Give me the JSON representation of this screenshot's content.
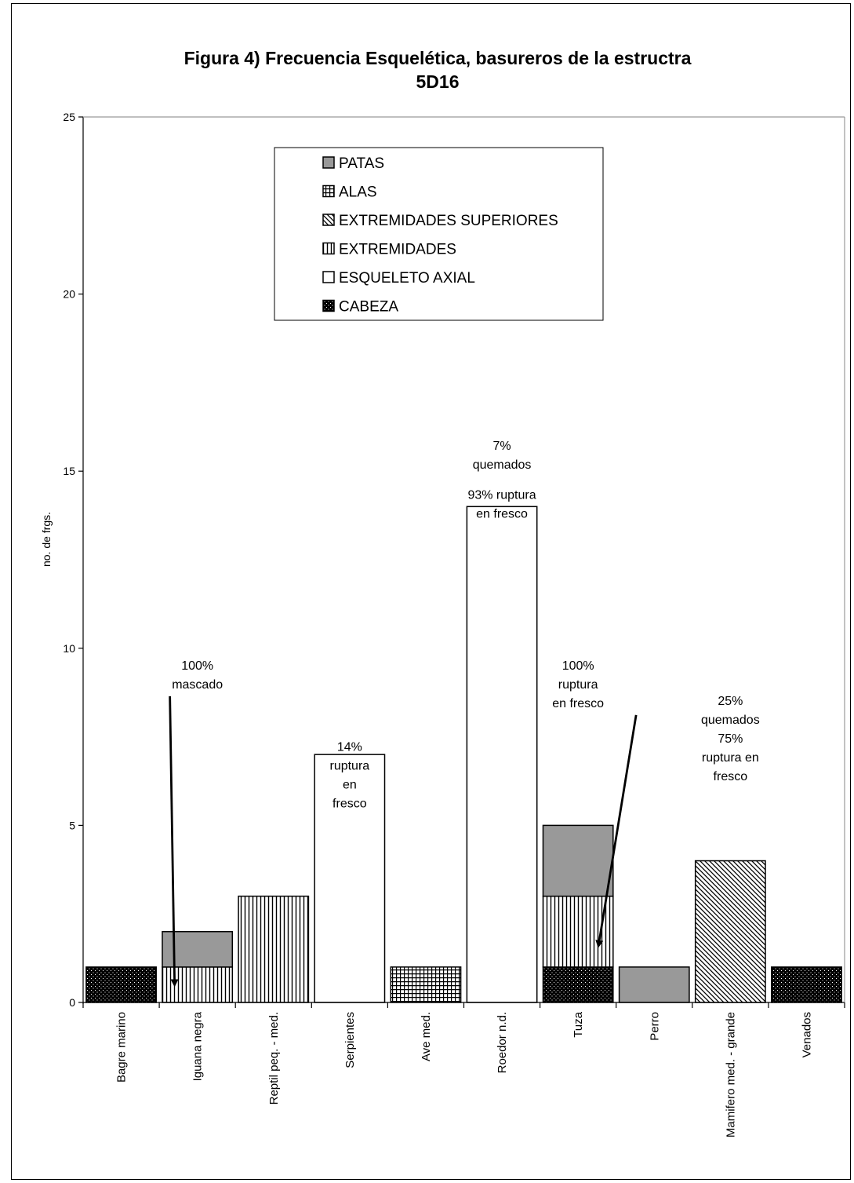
{
  "chart_data": {
    "type": "bar",
    "stacked": true,
    "title_line1": "Figura 4) Frecuencia Esquelética, basureros de la estructra",
    "title_line2": "5D16",
    "ylabel": "no. de frgs.",
    "xlabel": "",
    "ylim": [
      0,
      25
    ],
    "yticks": [
      "0",
      "5",
      "10",
      "15",
      "20",
      "25"
    ],
    "grid": false,
    "legend_position": "top-center",
    "categories": [
      "Bagre marino",
      "Iguana negra",
      "Reptil peq. - med.",
      "Serpientes",
      "Ave med.",
      "Roedor n.d.",
      "Tuza",
      "Perro",
      "Mamifero med. - grande",
      "Venados"
    ],
    "series": [
      {
        "name": "CABEZA",
        "pattern": "dots",
        "values": [
          1,
          0,
          0,
          0,
          0,
          0,
          1,
          0,
          0,
          1
        ]
      },
      {
        "name": "ESQUELETO AXIAL",
        "pattern": "white",
        "values": [
          0,
          0,
          0,
          7,
          0,
          14,
          0,
          0,
          0,
          0
        ]
      },
      {
        "name": "EXTREMIDADES",
        "pattern": "vlines",
        "values": [
          0,
          1,
          3,
          0,
          0,
          0,
          2,
          0,
          0,
          0
        ]
      },
      {
        "name": "EXTREMIDADES SUPERIORES",
        "pattern": "diag",
        "values": [
          0,
          0,
          0,
          0,
          0,
          0,
          0,
          0,
          4,
          0
        ]
      },
      {
        "name": "ALAS",
        "pattern": "grid",
        "values": [
          0,
          0,
          0,
          0,
          1,
          0,
          0,
          0,
          0,
          0
        ]
      },
      {
        "name": "PATAS",
        "pattern": "gray",
        "values": [
          0,
          1,
          0,
          0,
          0,
          0,
          2,
          1,
          0,
          0
        ]
      }
    ],
    "legend_order": [
      "PATAS",
      "ALAS",
      "EXTREMIDADES SUPERIORES",
      "EXTREMIDADES",
      "ESQUELETO AXIAL",
      "CABEZA"
    ],
    "annotations": [
      {
        "category": "Iguana negra",
        "lines": [
          "100%",
          "mascado"
        ],
        "anchor_y": 9.4,
        "arrow": true,
        "arrow_to": 0.5
      },
      {
        "category": "Serpientes",
        "lines": [
          "14%",
          "ruptura",
          "en",
          "fresco"
        ],
        "anchor_y": 7.1,
        "arrow": false
      },
      {
        "category": "Roedor n.d.",
        "lines": [
          "7%",
          "quemados",
          "",
          "93% ruptura",
          "en fresco"
        ],
        "anchor_y": 15.6,
        "arrow": false
      },
      {
        "category": "Tuza",
        "lines": [
          "100%",
          "ruptura",
          "en fresco"
        ],
        "anchor_y": 9.4,
        "arrow": true,
        "arrow_to": 1.6
      },
      {
        "category": "Mamifero med. - grande",
        "lines": [
          "25%",
          "quemados",
          "75%",
          "ruptura en",
          "fresco"
        ],
        "anchor_y": 8.4,
        "arrow": false
      }
    ],
    "colors": {
      "gray": "#999999",
      "dark": "#000000",
      "white": "#ffffff"
    }
  }
}
